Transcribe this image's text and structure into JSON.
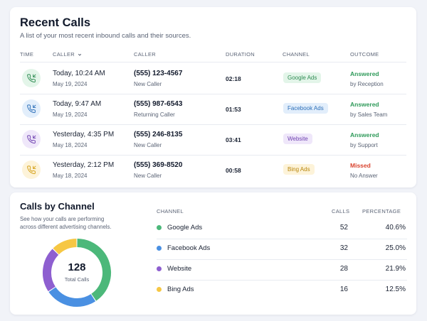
{
  "recent_calls": {
    "title": "Recent Calls",
    "subtitle": "A list of your most recent inbound calls and their sources.",
    "columns": {
      "time": "TIME",
      "caller_sort": "CALLER",
      "caller": "CALLER",
      "duration": "DURATION",
      "channel": "CHANNEL",
      "outcome": "OUTCOME"
    },
    "rows": [
      {
        "time": "Today, 10:24 AM",
        "date": "May 19, 2024",
        "phone": "(555) 123-4567",
        "caller_type": "New Caller",
        "duration": "02:18",
        "channel": "Google Ads",
        "outcome": "Answered",
        "outcome_by": "by Reception"
      },
      {
        "time": "Today, 9:47 AM",
        "date": "May 19, 2024",
        "phone": "(555) 987-6543",
        "caller_type": "Returning Caller",
        "duration": "01:53",
        "channel": "Facebook Ads",
        "outcome": "Answered",
        "outcome_by": "by Sales Team"
      },
      {
        "time": "Yesterday, 4:35 PM",
        "date": "May 18, 2024",
        "phone": "(555) 246-8135",
        "caller_type": "New Caller",
        "duration": "03:41",
        "channel": "Website",
        "outcome": "Answered",
        "outcome_by": "by Support"
      },
      {
        "time": "Yesterday, 2:12 PM",
        "date": "May 18, 2024",
        "phone": "(555) 369-8520",
        "caller_type": "New Caller",
        "duration": "00:58",
        "channel": "Bing Ads",
        "outcome": "Missed",
        "outcome_by": "No Answer"
      }
    ]
  },
  "calls_by_channel": {
    "title": "Calls by Channel",
    "subtitle": "See how your calls are performing across different advertising channels.",
    "total_value": "128",
    "total_label": "Total Calls",
    "columns": {
      "channel": "CHANNEL",
      "calls": "CALLS",
      "percentage": "PERCENTAGE"
    },
    "rows": [
      {
        "name": "Google Ads",
        "calls": "52",
        "percentage": "40.6%"
      },
      {
        "name": "Facebook Ads",
        "calls": "32",
        "percentage": "25.0%"
      },
      {
        "name": "Website",
        "calls": "28",
        "percentage": "21.9%"
      },
      {
        "name": "Bing Ads",
        "calls": "16",
        "percentage": "12.5%"
      }
    ]
  },
  "chart_data": {
    "type": "pie",
    "categories": [
      "Google Ads",
      "Facebook Ads",
      "Website",
      "Bing Ads"
    ],
    "values": [
      52,
      32,
      28,
      16
    ],
    "title": "",
    "colors": [
      "#4cb87a",
      "#4a90e2",
      "#8e5fd0",
      "#f6c744"
    ]
  },
  "colors": {
    "google": {
      "dot": "#4cb87a",
      "bg": "#e3f5e9",
      "text": "#2f8c53"
    },
    "facebook": {
      "dot": "#4a90e2",
      "bg": "#e2eefb",
      "text": "#2d6fb8"
    },
    "website": {
      "dot": "#8e5fd0",
      "bg": "#efe7fa",
      "text": "#6f42b0"
    },
    "bing": {
      "dot": "#f6c744",
      "bg": "#fdf3d9",
      "text": "#b8860b"
    },
    "answered": "#2f9a5a",
    "missed": "#d9442f"
  },
  "icons": {
    "row_icon": "incoming-call-icon",
    "sort_icon": "chevron-down-icon"
  }
}
